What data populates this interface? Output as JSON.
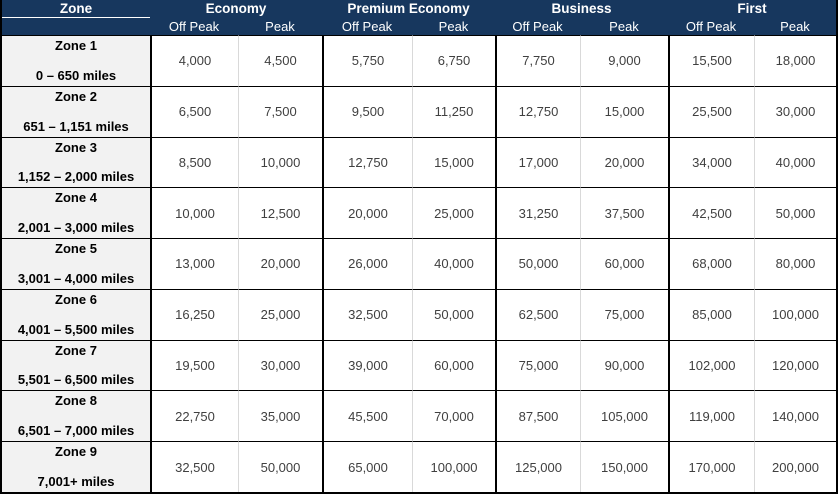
{
  "colors": {
    "header_bg": "#17375E",
    "header_text": "#FFFFFF",
    "zone_column_bg": "#F2F2F2",
    "row_border": "#000000",
    "inner_divider": "#D9D9D9",
    "value_text": "#404040"
  },
  "table": {
    "zone_header": "Zone",
    "groups": [
      {
        "label": "Economy",
        "subcolumns": [
          "Off Peak",
          "Peak"
        ]
      },
      {
        "label": "Premium Economy",
        "subcolumns": [
          "Off Peak",
          "Peak"
        ]
      },
      {
        "label": "Business",
        "subcolumns": [
          "Off Peak",
          "Peak"
        ]
      },
      {
        "label": "First",
        "subcolumns": [
          "Off Peak",
          "Peak"
        ]
      }
    ],
    "rows": [
      {
        "zone": "Zone 1",
        "range": "0 – 650 miles",
        "values": [
          "4,000",
          "4,500",
          "5,750",
          "6,750",
          "7,750",
          "9,000",
          "15,500",
          "18,000"
        ]
      },
      {
        "zone": "Zone 2",
        "range": "651 – 1,151 miles",
        "values": [
          "6,500",
          "7,500",
          "9,500",
          "11,250",
          "12,750",
          "15,000",
          "25,500",
          "30,000"
        ]
      },
      {
        "zone": "Zone 3",
        "range": "1,152 – 2,000 miles",
        "values": [
          "8,500",
          "10,000",
          "12,750",
          "15,000",
          "17,000",
          "20,000",
          "34,000",
          "40,000"
        ]
      },
      {
        "zone": "Zone 4",
        "range": "2,001 – 3,000 miles",
        "values": [
          "10,000",
          "12,500",
          "20,000",
          "25,000",
          "31,250",
          "37,500",
          "42,500",
          "50,000"
        ]
      },
      {
        "zone": "Zone 5",
        "range": "3,001 – 4,000 miles",
        "values": [
          "13,000",
          "20,000",
          "26,000",
          "40,000",
          "50,000",
          "60,000",
          "68,000",
          "80,000"
        ]
      },
      {
        "zone": "Zone 6",
        "range": "4,001 – 5,500 miles",
        "values": [
          "16,250",
          "25,000",
          "32,500",
          "50,000",
          "62,500",
          "75,000",
          "85,000",
          "100,000"
        ]
      },
      {
        "zone": "Zone 7",
        "range": "5,501 – 6,500 miles",
        "values": [
          "19,500",
          "30,000",
          "39,000",
          "60,000",
          "75,000",
          "90,000",
          "102,000",
          "120,000"
        ]
      },
      {
        "zone": "Zone 8",
        "range": "6,501 – 7,000 miles",
        "values": [
          "22,750",
          "35,000",
          "45,500",
          "70,000",
          "87,500",
          "105,000",
          "119,000",
          "140,000"
        ]
      },
      {
        "zone": "Zone 9",
        "range": "7,001+ miles",
        "values": [
          "32,500",
          "50,000",
          "65,000",
          "100,000",
          "125,000",
          "150,000",
          "170,000",
          "200,000"
        ]
      }
    ]
  },
  "chart_data": {
    "type": "table",
    "columns": [
      "Zone",
      "Zone miles range",
      "Economy Off Peak",
      "Economy Peak",
      "Premium Economy Off Peak",
      "Premium Economy Peak",
      "Business Off Peak",
      "Business Peak",
      "First Off Peak",
      "First Peak"
    ],
    "rows": [
      [
        "Zone 1",
        "0 – 650 miles",
        4000,
        4500,
        5750,
        6750,
        7750,
        9000,
        15500,
        18000
      ],
      [
        "Zone 2",
        "651 – 1,151 miles",
        6500,
        7500,
        9500,
        11250,
        12750,
        15000,
        25500,
        30000
      ],
      [
        "Zone 3",
        "1,152 – 2,000 miles",
        8500,
        10000,
        12750,
        15000,
        17000,
        20000,
        34000,
        40000
      ],
      [
        "Zone 4",
        "2,001 – 3,000 miles",
        10000,
        12500,
        20000,
        25000,
        31250,
        37500,
        42500,
        50000
      ],
      [
        "Zone 5",
        "3,001 – 4,000 miles",
        13000,
        20000,
        26000,
        40000,
        50000,
        60000,
        68000,
        80000
      ],
      [
        "Zone 6",
        "4,001 – 5,500 miles",
        16250,
        25000,
        32500,
        50000,
        62500,
        75000,
        85000,
        100000
      ],
      [
        "Zone 7",
        "5,501 – 6,500 miles",
        19500,
        30000,
        39000,
        60000,
        75000,
        90000,
        102000,
        120000
      ],
      [
        "Zone 8",
        "6,501 – 7,000 miles",
        22750,
        35000,
        45500,
        70000,
        87500,
        105000,
        119000,
        140000
      ],
      [
        "Zone 9",
        "7,001+ miles",
        32500,
        50000,
        65000,
        100000,
        125000,
        150000,
        170000,
        200000
      ]
    ]
  }
}
